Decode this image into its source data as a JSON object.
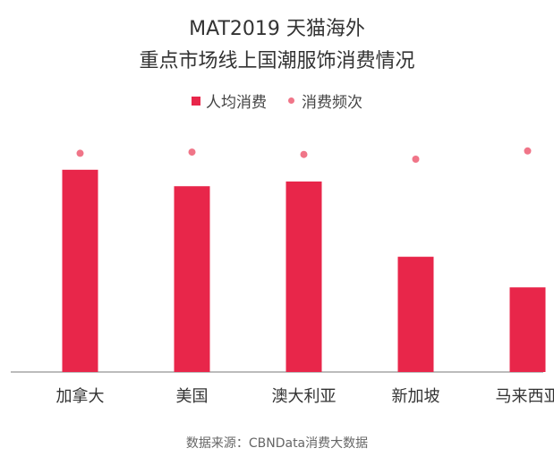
{
  "colors": {
    "bar": "#E8264A",
    "dot": "#F07588",
    "axis": "#7A7A7A",
    "text": "#333333"
  },
  "chart_data": {
    "type": "bar",
    "title": "MAT2019 天猫海外",
    "subtitle": "重点市场线上国潮服饰消费情况",
    "categories": [
      "加拿大",
      "美国",
      "澳大利亚",
      "新加坡",
      "马来西亚"
    ],
    "series": [
      {
        "name": "人均消费",
        "kind": "bar",
        "values": [
          86,
          79,
          81,
          49,
          36
        ]
      },
      {
        "name": "消费频次",
        "kind": "dot",
        "values": [
          93,
          93.5,
          92.5,
          90.5,
          94
        ]
      }
    ],
    "ylim": [
      0,
      100
    ],
    "xlabel": "",
    "ylabel": "",
    "grid": false,
    "legend": "top-center"
  },
  "source": "数据来源：CBNData消费大数据"
}
